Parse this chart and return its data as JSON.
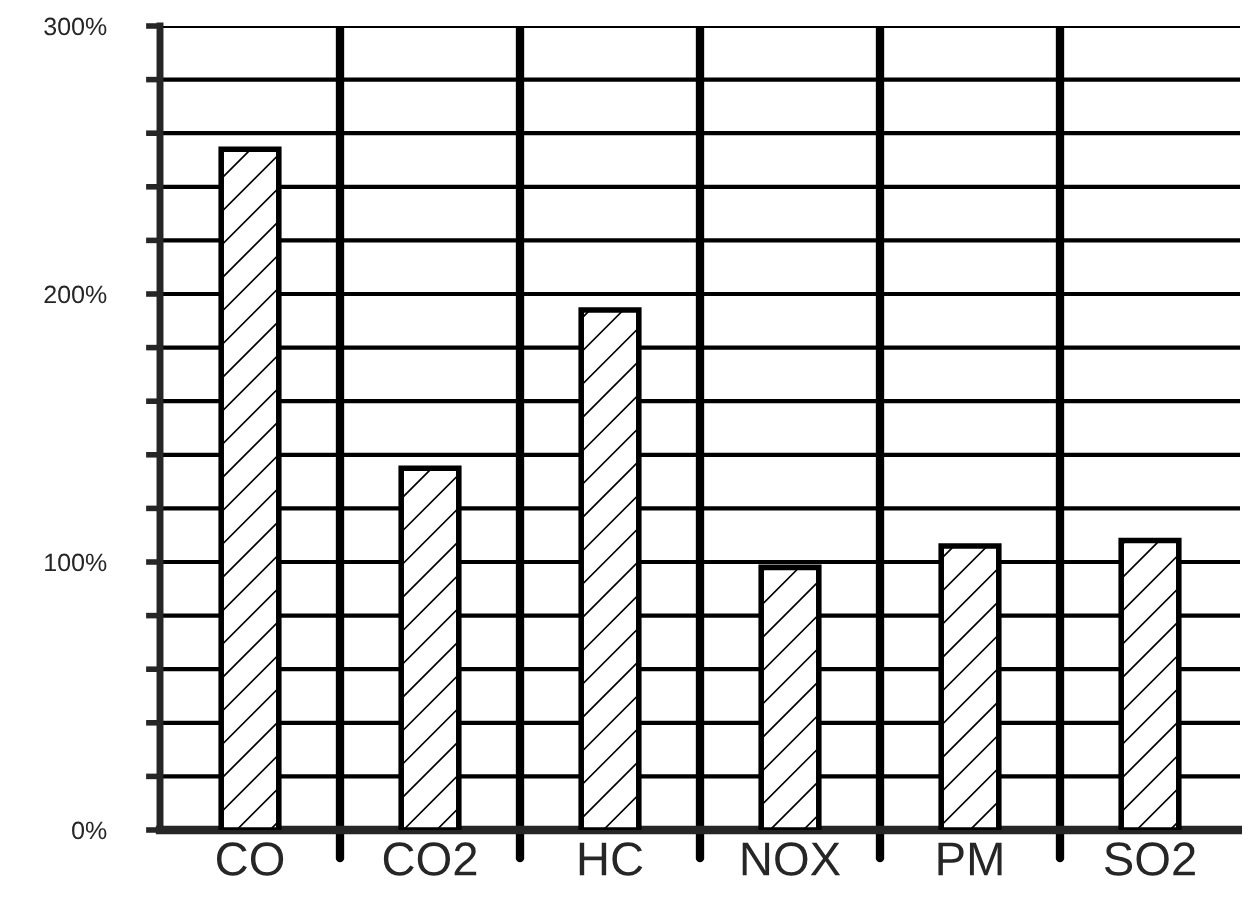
{
  "chart_data": {
    "type": "bar",
    "categories": [
      "CO",
      "CO2",
      "HC",
      "NOX",
      "PM",
      "SO2"
    ],
    "values": [
      254,
      135,
      194,
      98,
      106,
      108
    ],
    "ylim": [
      0,
      300
    ],
    "yticks": [
      {
        "value": 0,
        "label": "0%"
      },
      {
        "value": 20,
        "label": null
      },
      {
        "value": 40,
        "label": null
      },
      {
        "value": 60,
        "label": null
      },
      {
        "value": 80,
        "label": null
      },
      {
        "value": 100,
        "label": "100%"
      },
      {
        "value": 120,
        "label": null
      },
      {
        "value": 140,
        "label": null
      },
      {
        "value": 160,
        "label": null
      },
      {
        "value": 180,
        "label": null
      },
      {
        "value": 200,
        "label": "200%"
      },
      {
        "value": 220,
        "label": null
      },
      {
        "value": 240,
        "label": null
      },
      {
        "value": 260,
        "label": null
      },
      {
        "value": 280,
        "label": null
      },
      {
        "value": 300,
        "label": "300%"
      }
    ],
    "grid": true
  }
}
